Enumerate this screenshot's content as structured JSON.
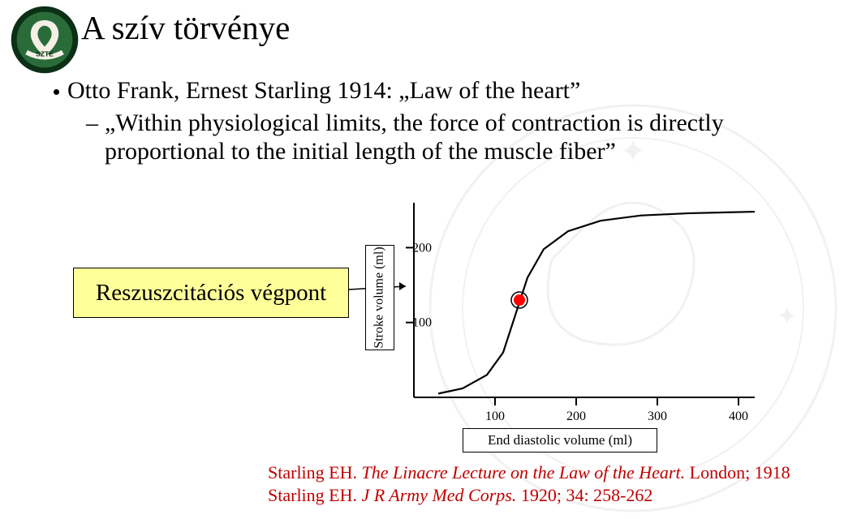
{
  "title": "A szív törvénye",
  "bullet_main": "Otto Frank, Ernest Starling 1914: „Law of the heart”",
  "sub_quote": "„Within physiological limits, the force of contraction is directly proportional to the initial length of the muscle fiber”",
  "resus_box": "Reszuszcitációs végpont",
  "chart": {
    "ylabel": "Stroke volume (ml)",
    "xlabel": "End diastolic volume (ml)",
    "yticks": [
      100,
      200
    ],
    "xticks": [
      100,
      200,
      300,
      400
    ],
    "xlim": [
      0,
      420
    ],
    "ylim": [
      0,
      260
    ],
    "axis_color": "#000000",
    "curve_color": "#000000",
    "marker_color": "#ff0000",
    "marker_ring": "#000000",
    "bg_color": "#ffffff",
    "curve": [
      [
        30,
        5
      ],
      [
        60,
        12
      ],
      [
        90,
        30
      ],
      [
        110,
        60
      ],
      [
        125,
        110
      ],
      [
        140,
        160
      ],
      [
        160,
        198
      ],
      [
        190,
        222
      ],
      [
        230,
        236
      ],
      [
        280,
        243
      ],
      [
        340,
        246
      ],
      [
        420,
        248
      ]
    ],
    "marker_point": [
      130,
      130
    ]
  },
  "ref1_a": "Starling EH. ",
  "ref1_b": "The Linacre Lecture on the Law of the Heart. ",
  "ref1_c": "London; 1918",
  "ref2_a": "Starling EH. ",
  "ref2_b": "J R Army Med Corps. ",
  "ref2_c": "1920; 34: 258-262",
  "colors": {
    "highlight_box": "#ffff99",
    "ref_text": "#c00000",
    "logo_green": "#2a6b3a",
    "logo_dark": "#0c3015"
  }
}
